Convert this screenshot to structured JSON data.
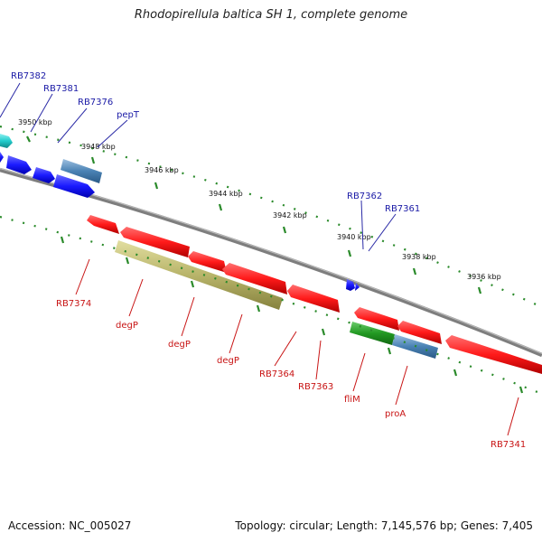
{
  "title": "Rhodopirellula baltica SH 1, complete genome",
  "footer": {
    "accession": "Accession: NC_005027",
    "summary": "Topology: circular; Length: 7,145,576 bp; Genes: 7,405"
  },
  "colors": {
    "backbone": "#8a8a8a",
    "forward": "#1a1aff",
    "reverse": "#ff1a1a",
    "cyan": "#22cccc",
    "steelblue": "#4a82b4",
    "khaki": "#b8b46a",
    "green": "#229922",
    "label_top": "#1a1aa6",
    "label_bottom": "#c81414",
    "ticks": "#2a8a2a"
  },
  "scale_labels": [
    "3950 kbp",
    "3948 kbp",
    "3946 kbp",
    "3944 kbp",
    "3942 kbp",
    "3940 kbp",
    "3938 kbp",
    "3936 kbp"
  ],
  "top_labels": [
    "RB7382",
    "RB7381",
    "RB7376",
    "pepT",
    "RB7362",
    "RB7361"
  ],
  "bottom_labels": [
    "RB7374",
    "degP",
    "degP",
    "degP",
    "RB7364",
    "RB7363",
    "fliM",
    "proA",
    "RB7341"
  ]
}
